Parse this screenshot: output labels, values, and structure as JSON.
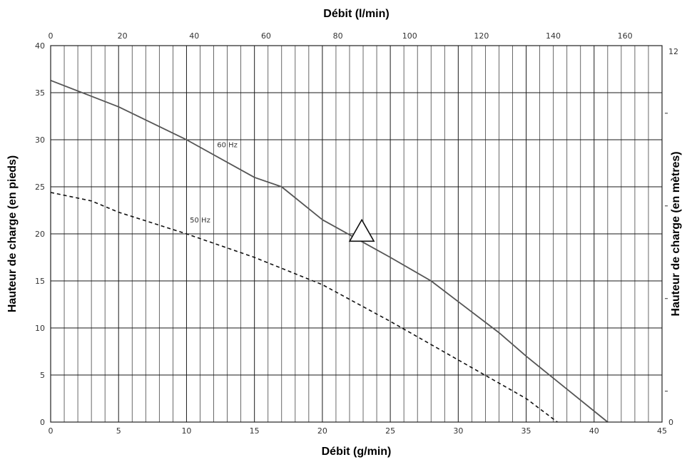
{
  "chart_data": {
    "type": "line",
    "axes": {
      "x_bottom": {
        "label": "Débit (g/min)",
        "range": [
          0,
          45
        ],
        "ticks": [
          0,
          5,
          10,
          15,
          20,
          25,
          30,
          35,
          40,
          45
        ]
      },
      "x_top": {
        "label": "Débit (l/min)",
        "range": [
          0,
          170.3
        ],
        "ticks": [
          0,
          20,
          40,
          60,
          80,
          100,
          120,
          140,
          160
        ]
      },
      "y_left": {
        "label": "Hauteur de charge (en pieds)",
        "range": [
          0,
          40
        ],
        "ticks": [
          0,
          5,
          10,
          15,
          20,
          25,
          30,
          35,
          40
        ]
      },
      "y_right": {
        "label": "Hauteur de charge (en mètres)",
        "range": [
          0,
          12.19
        ],
        "ticks": [
          0,
          12
        ],
        "minor_ticks": [
          1,
          4,
          7,
          10
        ]
      }
    },
    "grid": true,
    "series": [
      {
        "name": "60 Hz",
        "style": "solid",
        "color": "#555555",
        "x": [
          0,
          5,
          10,
          15,
          17,
          20,
          25,
          28,
          30,
          33,
          35,
          38,
          41
        ],
        "y": [
          36.3,
          33.5,
          30,
          26,
          25,
          21.5,
          17.5,
          15,
          12.8,
          9.5,
          7,
          3.5,
          0
        ]
      },
      {
        "name": "50 Hz",
        "style": "dashed",
        "color": "#111111",
        "x": [
          0,
          3,
          5,
          10,
          15,
          20,
          25,
          30,
          35,
          37.3
        ],
        "y": [
          24.4,
          23.5,
          22.3,
          20,
          17.5,
          14.6,
          10.7,
          6.6,
          2.5,
          0
        ]
      }
    ],
    "annotations": [
      {
        "type": "triangle-marker",
        "x": 22.9,
        "y": 20.2
      }
    ]
  }
}
